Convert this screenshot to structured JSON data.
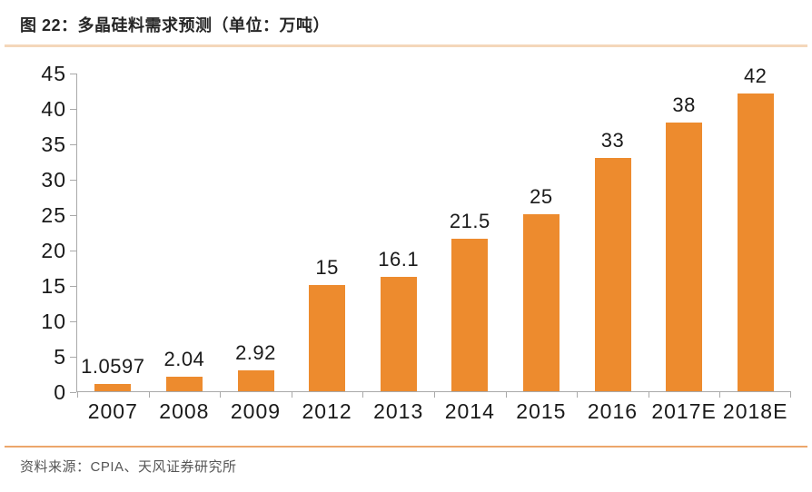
{
  "figure": {
    "title": "图 22：多晶硅料需求预测（单位：万吨）",
    "source": "资料来源：CPIA、天风证券研究所"
  },
  "colors": {
    "bar": "#ed8b2e",
    "axis": "#a9a9a9",
    "label_text": "#1a1a1a",
    "title_text": "#262626",
    "source_text": "#555555",
    "title_rule": "#f4d7ba",
    "bottom_rule": "#eca66b"
  },
  "chart_data": {
    "type": "bar",
    "title": "多晶硅料需求预测",
    "unit": "万吨",
    "categories": [
      "2007",
      "2008",
      "2009",
      "2012",
      "2013",
      "2014",
      "2015",
      "2016",
      "2017E",
      "2018E"
    ],
    "values": [
      1.0597,
      2.04,
      2.92,
      15,
      16.1,
      21.5,
      25,
      33,
      38,
      42
    ],
    "value_labels": [
      "1.0597",
      "2.04",
      "2.92",
      "15",
      "16.1",
      "21.5",
      "25",
      "33",
      "38",
      "42"
    ],
    "xlabel": "",
    "ylabel": "",
    "ylim": [
      0,
      45
    ],
    "ytick_step": 5,
    "grid": false,
    "legend": false,
    "data_labels": true
  }
}
